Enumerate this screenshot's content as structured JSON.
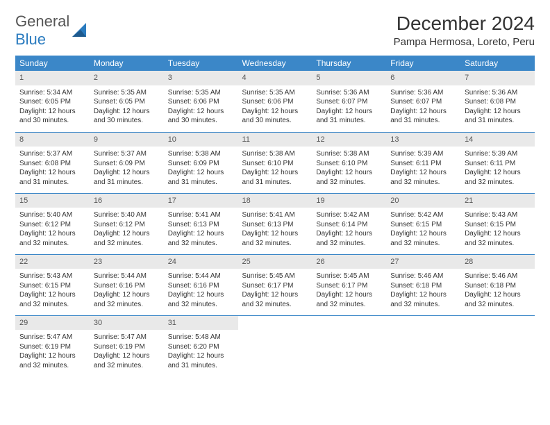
{
  "logo": {
    "line1": "General",
    "line2": "Blue"
  },
  "header": {
    "title": "December 2024",
    "location": "Pampa Hermosa, Loreto, Peru"
  },
  "colors": {
    "header_bg": "#3b87c8",
    "daynum_bg": "#e9e9e9",
    "rule": "#3b87c8"
  },
  "weekdays": [
    "Sunday",
    "Monday",
    "Tuesday",
    "Wednesday",
    "Thursday",
    "Friday",
    "Saturday"
  ],
  "weeks": [
    [
      {
        "n": "1",
        "sr": "Sunrise: 5:34 AM",
        "ss": "Sunset: 6:05 PM",
        "d1": "Daylight: 12 hours",
        "d2": "and 30 minutes."
      },
      {
        "n": "2",
        "sr": "Sunrise: 5:35 AM",
        "ss": "Sunset: 6:05 PM",
        "d1": "Daylight: 12 hours",
        "d2": "and 30 minutes."
      },
      {
        "n": "3",
        "sr": "Sunrise: 5:35 AM",
        "ss": "Sunset: 6:06 PM",
        "d1": "Daylight: 12 hours",
        "d2": "and 30 minutes."
      },
      {
        "n": "4",
        "sr": "Sunrise: 5:35 AM",
        "ss": "Sunset: 6:06 PM",
        "d1": "Daylight: 12 hours",
        "d2": "and 30 minutes."
      },
      {
        "n": "5",
        "sr": "Sunrise: 5:36 AM",
        "ss": "Sunset: 6:07 PM",
        "d1": "Daylight: 12 hours",
        "d2": "and 31 minutes."
      },
      {
        "n": "6",
        "sr": "Sunrise: 5:36 AM",
        "ss": "Sunset: 6:07 PM",
        "d1": "Daylight: 12 hours",
        "d2": "and 31 minutes."
      },
      {
        "n": "7",
        "sr": "Sunrise: 5:36 AM",
        "ss": "Sunset: 6:08 PM",
        "d1": "Daylight: 12 hours",
        "d2": "and 31 minutes."
      }
    ],
    [
      {
        "n": "8",
        "sr": "Sunrise: 5:37 AM",
        "ss": "Sunset: 6:08 PM",
        "d1": "Daylight: 12 hours",
        "d2": "and 31 minutes."
      },
      {
        "n": "9",
        "sr": "Sunrise: 5:37 AM",
        "ss": "Sunset: 6:09 PM",
        "d1": "Daylight: 12 hours",
        "d2": "and 31 minutes."
      },
      {
        "n": "10",
        "sr": "Sunrise: 5:38 AM",
        "ss": "Sunset: 6:09 PM",
        "d1": "Daylight: 12 hours",
        "d2": "and 31 minutes."
      },
      {
        "n": "11",
        "sr": "Sunrise: 5:38 AM",
        "ss": "Sunset: 6:10 PM",
        "d1": "Daylight: 12 hours",
        "d2": "and 31 minutes."
      },
      {
        "n": "12",
        "sr": "Sunrise: 5:38 AM",
        "ss": "Sunset: 6:10 PM",
        "d1": "Daylight: 12 hours",
        "d2": "and 32 minutes."
      },
      {
        "n": "13",
        "sr": "Sunrise: 5:39 AM",
        "ss": "Sunset: 6:11 PM",
        "d1": "Daylight: 12 hours",
        "d2": "and 32 minutes."
      },
      {
        "n": "14",
        "sr": "Sunrise: 5:39 AM",
        "ss": "Sunset: 6:11 PM",
        "d1": "Daylight: 12 hours",
        "d2": "and 32 minutes."
      }
    ],
    [
      {
        "n": "15",
        "sr": "Sunrise: 5:40 AM",
        "ss": "Sunset: 6:12 PM",
        "d1": "Daylight: 12 hours",
        "d2": "and 32 minutes."
      },
      {
        "n": "16",
        "sr": "Sunrise: 5:40 AM",
        "ss": "Sunset: 6:12 PM",
        "d1": "Daylight: 12 hours",
        "d2": "and 32 minutes."
      },
      {
        "n": "17",
        "sr": "Sunrise: 5:41 AM",
        "ss": "Sunset: 6:13 PM",
        "d1": "Daylight: 12 hours",
        "d2": "and 32 minutes."
      },
      {
        "n": "18",
        "sr": "Sunrise: 5:41 AM",
        "ss": "Sunset: 6:13 PM",
        "d1": "Daylight: 12 hours",
        "d2": "and 32 minutes."
      },
      {
        "n": "19",
        "sr": "Sunrise: 5:42 AM",
        "ss": "Sunset: 6:14 PM",
        "d1": "Daylight: 12 hours",
        "d2": "and 32 minutes."
      },
      {
        "n": "20",
        "sr": "Sunrise: 5:42 AM",
        "ss": "Sunset: 6:15 PM",
        "d1": "Daylight: 12 hours",
        "d2": "and 32 minutes."
      },
      {
        "n": "21",
        "sr": "Sunrise: 5:43 AM",
        "ss": "Sunset: 6:15 PM",
        "d1": "Daylight: 12 hours",
        "d2": "and 32 minutes."
      }
    ],
    [
      {
        "n": "22",
        "sr": "Sunrise: 5:43 AM",
        "ss": "Sunset: 6:15 PM",
        "d1": "Daylight: 12 hours",
        "d2": "and 32 minutes."
      },
      {
        "n": "23",
        "sr": "Sunrise: 5:44 AM",
        "ss": "Sunset: 6:16 PM",
        "d1": "Daylight: 12 hours",
        "d2": "and 32 minutes."
      },
      {
        "n": "24",
        "sr": "Sunrise: 5:44 AM",
        "ss": "Sunset: 6:16 PM",
        "d1": "Daylight: 12 hours",
        "d2": "and 32 minutes."
      },
      {
        "n": "25",
        "sr": "Sunrise: 5:45 AM",
        "ss": "Sunset: 6:17 PM",
        "d1": "Daylight: 12 hours",
        "d2": "and 32 minutes."
      },
      {
        "n": "26",
        "sr": "Sunrise: 5:45 AM",
        "ss": "Sunset: 6:17 PM",
        "d1": "Daylight: 12 hours",
        "d2": "and 32 minutes."
      },
      {
        "n": "27",
        "sr": "Sunrise: 5:46 AM",
        "ss": "Sunset: 6:18 PM",
        "d1": "Daylight: 12 hours",
        "d2": "and 32 minutes."
      },
      {
        "n": "28",
        "sr": "Sunrise: 5:46 AM",
        "ss": "Sunset: 6:18 PM",
        "d1": "Daylight: 12 hours",
        "d2": "and 32 minutes."
      }
    ],
    [
      {
        "n": "29",
        "sr": "Sunrise: 5:47 AM",
        "ss": "Sunset: 6:19 PM",
        "d1": "Daylight: 12 hours",
        "d2": "and 32 minutes."
      },
      {
        "n": "30",
        "sr": "Sunrise: 5:47 AM",
        "ss": "Sunset: 6:19 PM",
        "d1": "Daylight: 12 hours",
        "d2": "and 32 minutes."
      },
      {
        "n": "31",
        "sr": "Sunrise: 5:48 AM",
        "ss": "Sunset: 6:20 PM",
        "d1": "Daylight: 12 hours",
        "d2": "and 31 minutes."
      },
      {
        "empty": true
      },
      {
        "empty": true
      },
      {
        "empty": true
      },
      {
        "empty": true
      }
    ]
  ]
}
